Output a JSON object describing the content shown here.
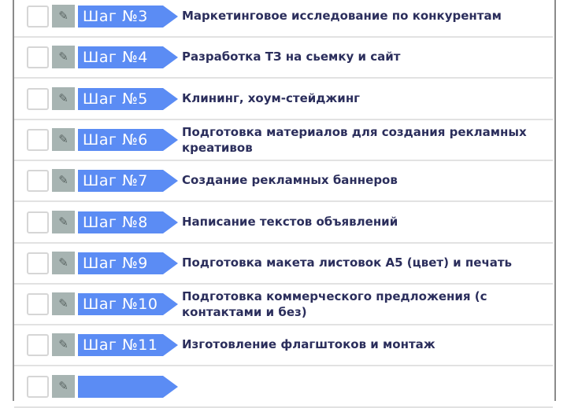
{
  "steps": [
    {
      "label": "Шаг  №3",
      "title": "Маркетинговое исследование по конкурентам"
    },
    {
      "label": "Шаг  №4",
      "title": "Разработка ТЗ на сьемку и сайт"
    },
    {
      "label": "Шаг  №5",
      "title": "Клининг, хоум-стейджинг"
    },
    {
      "label": "Шаг  №6",
      "title": "Подготовка материалов для создания рекламных креативов"
    },
    {
      "label": "Шаг  №7",
      "title": "Создание рекламных баннеров"
    },
    {
      "label": "Шаг  №8",
      "title": "Написание текстов объявлений"
    },
    {
      "label": "Шаг  №9",
      "title": "Подготовка макета листовок А5 (цвет) и печать"
    },
    {
      "label": "Шаг  №10",
      "title": "Подготовка коммерческого предложения (с контактами и без)"
    },
    {
      "label": "Шаг  №11",
      "title": "Изготовление флагштоков и монтаж"
    },
    {
      "label": "",
      "title": ""
    }
  ],
  "icons": {
    "edit": "pencil-icon",
    "checkbox": "checkbox-empty"
  },
  "colors": {
    "badge": "#5b8cf4",
    "text": "#2b2e5c",
    "edit_bg": "#a7b4b2"
  }
}
